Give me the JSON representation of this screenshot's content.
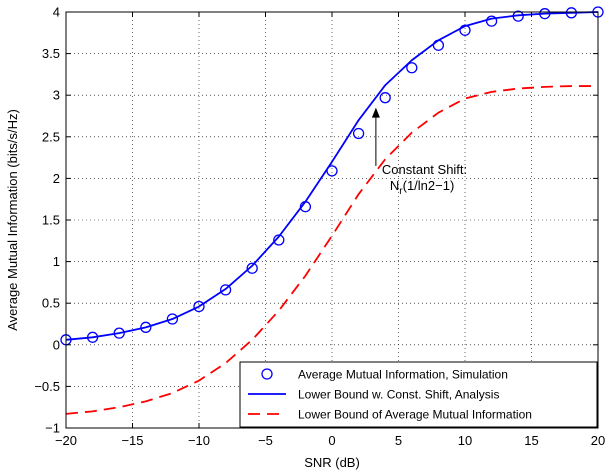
{
  "chart_data": {
    "type": "line",
    "title": "",
    "xlabel": "SNR (dB)",
    "ylabel": "Average Mutual Information (bits/s/Hz)",
    "xlim": [
      -20,
      20
    ],
    "ylim": [
      -1,
      4
    ],
    "xticks": [
      -20,
      -15,
      -10,
      -5,
      0,
      5,
      10,
      15,
      20
    ],
    "yticks": [
      -1,
      -0.5,
      0,
      0.5,
      1,
      1.5,
      2,
      2.5,
      3,
      3.5,
      4
    ],
    "grid": true,
    "legend_position": "bottom-right",
    "series": [
      {
        "name": "Average Mutual Information, Simulation",
        "style": "markers",
        "marker": "circle",
        "color": "#0000ff",
        "x": [
          -20,
          -18,
          -16,
          -14,
          -12,
          -10,
          -8,
          -6,
          -4,
          -2,
          0,
          2,
          4,
          6,
          8,
          10,
          12,
          14,
          16,
          18,
          20
        ],
        "y": [
          0.06,
          0.09,
          0.14,
          0.21,
          0.31,
          0.46,
          0.66,
          0.92,
          1.26,
          1.66,
          2.09,
          2.54,
          2.97,
          3.33,
          3.6,
          3.78,
          3.89,
          3.95,
          3.98,
          3.99,
          4.0
        ]
      },
      {
        "name": "Lower Bound w. Const. Shift, Analysis",
        "style": "solid",
        "color": "#0000ff",
        "x": [
          -20,
          -18,
          -16,
          -14,
          -12,
          -10,
          -8,
          -6,
          -4,
          -2,
          0,
          2,
          4,
          6,
          8,
          10,
          12,
          14,
          16,
          18,
          20
        ],
        "y": [
          0.06,
          0.09,
          0.14,
          0.21,
          0.31,
          0.46,
          0.67,
          0.95,
          1.3,
          1.72,
          2.2,
          2.7,
          3.12,
          3.42,
          3.66,
          3.83,
          3.92,
          3.96,
          3.98,
          3.99,
          4.0
        ]
      },
      {
        "name": "Lower Bound of Average Mutual Information",
        "style": "dashed",
        "color": "#ff0000",
        "x": [
          -20,
          -18,
          -16,
          -14,
          -12,
          -10,
          -8,
          -6,
          -4,
          -2,
          0,
          2,
          4,
          6,
          8,
          10,
          12,
          14,
          16,
          18,
          20
        ],
        "y": [
          -0.83,
          -0.8,
          -0.75,
          -0.68,
          -0.58,
          -0.43,
          -0.22,
          0.06,
          0.41,
          0.83,
          1.31,
          1.81,
          2.23,
          2.55,
          2.79,
          2.96,
          3.04,
          3.08,
          3.1,
          3.11,
          3.11
        ]
      }
    ],
    "annotation": {
      "text_line1": "Constant Shift:",
      "text_line2_main": "N",
      "text_line2_sub": "r",
      "text_line2_rest": "(1/ln2−1)",
      "arrow_from": [
        3.3,
        2.15
      ],
      "arrow_to": [
        3.3,
        2.85
      ]
    }
  }
}
